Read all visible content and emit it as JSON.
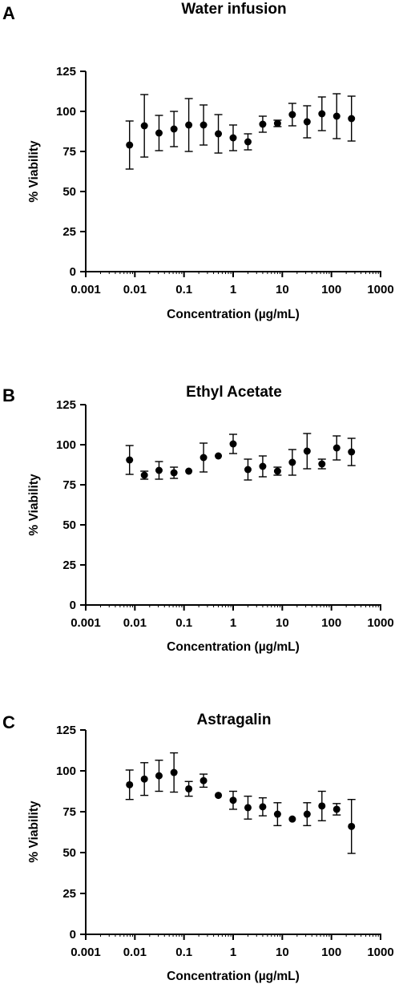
{
  "figure": {
    "panels": [
      {
        "letter": "A",
        "title": "Water infusion"
      },
      {
        "letter": "B",
        "title": "Ethyl Acetate"
      },
      {
        "letter": "C",
        "title": "Astragalin"
      }
    ]
  },
  "chart_data": [
    {
      "type": "scatter",
      "panel": "A",
      "title": "Water infusion",
      "xlabel": "Concentration (µg/mL)",
      "ylabel": "% Viability",
      "xscale": "log",
      "xlim": [
        0.001,
        1000
      ],
      "ylim": [
        0,
        125
      ],
      "xticks": [
        0.001,
        0.01,
        0.1,
        1,
        10,
        100,
        1000
      ],
      "xtick_labels": [
        "0.001",
        "0.01",
        "0.1",
        "1",
        "10",
        "100",
        "1000"
      ],
      "yticks": [
        0,
        25,
        50,
        75,
        100,
        125
      ],
      "ytick_labels": [
        "0",
        "25",
        "50",
        "75",
        "100",
        "125"
      ],
      "baseline": "dashed line at 0",
      "grid": false,
      "x": [
        0.0078,
        0.0156,
        0.031,
        0.0625,
        0.125,
        0.25,
        0.5,
        1,
        2,
        4,
        8,
        16,
        32,
        64,
        128,
        256
      ],
      "y": [
        79,
        91,
        86.5,
        89,
        91.5,
        91.5,
        86,
        83.5,
        81,
        92,
        92.5,
        98,
        93.5,
        98.5,
        97,
        95.5
      ],
      "err": [
        15,
        19.5,
        11,
        11,
        16.5,
        12.5,
        12,
        8,
        5,
        5,
        2,
        7,
        10,
        10.5,
        14,
        14
      ]
    },
    {
      "type": "scatter",
      "panel": "B",
      "title": "Ethyl Acetate",
      "xlabel": "Concentration (µg/mL)",
      "ylabel": "% Viability",
      "xscale": "log",
      "xlim": [
        0.001,
        1000
      ],
      "ylim": [
        0,
        125
      ],
      "xticks": [
        0.001,
        0.01,
        0.1,
        1,
        10,
        100,
        1000
      ],
      "xtick_labels": [
        "0.001",
        "0.01",
        "0.1",
        "1",
        "10",
        "100",
        "1000"
      ],
      "yticks": [
        0,
        25,
        50,
        75,
        100,
        125
      ],
      "ytick_labels": [
        "0",
        "25",
        "50",
        "75",
        "100",
        "125"
      ],
      "grid": false,
      "x": [
        0.0078,
        0.0156,
        0.031,
        0.0625,
        0.125,
        0.25,
        0.5,
        1,
        2,
        4,
        8,
        16,
        32,
        64,
        128,
        256
      ],
      "y": [
        90.5,
        81,
        84,
        82.5,
        83.5,
        92,
        93,
        100.5,
        84.5,
        86.5,
        83.5,
        89,
        96,
        88,
        98,
        95.5
      ],
      "err": [
        9,
        2.5,
        5.5,
        3.5,
        0,
        9,
        0,
        6,
        6.5,
        6.5,
        2.5,
        8,
        11,
        3,
        7.5,
        8.5
      ]
    },
    {
      "type": "scatter",
      "panel": "C",
      "title": "Astragalin",
      "xlabel": "Concentration (µg/mL)",
      "ylabel": "% Viability",
      "xscale": "log",
      "xlim": [
        0.001,
        1000
      ],
      "ylim": [
        0,
        125
      ],
      "xticks": [
        0.001,
        0.01,
        0.1,
        1,
        10,
        100,
        1000
      ],
      "xtick_labels": [
        "0.001",
        "0.01",
        "0.1",
        "1",
        "10",
        "100",
        "1000"
      ],
      "yticks": [
        0,
        25,
        50,
        75,
        100,
        125
      ],
      "ytick_labels": [
        "0",
        "25",
        "50",
        "75",
        "100",
        "125"
      ],
      "grid": false,
      "x": [
        0.0078,
        0.0156,
        0.031,
        0.0625,
        0.125,
        0.25,
        0.5,
        1,
        2,
        4,
        8,
        16,
        32,
        64,
        128,
        256
      ],
      "y": [
        91.5,
        95,
        97,
        99,
        89,
        94,
        85,
        82,
        77.5,
        78,
        73.5,
        70.5,
        73.5,
        78.5,
        76.5,
        66
      ],
      "err": [
        9,
        10,
        9.5,
        12,
        4.5,
        4,
        0,
        5.5,
        7,
        5.5,
        7,
        0,
        7,
        9,
        3.5,
        16.5
      ]
    }
  ]
}
